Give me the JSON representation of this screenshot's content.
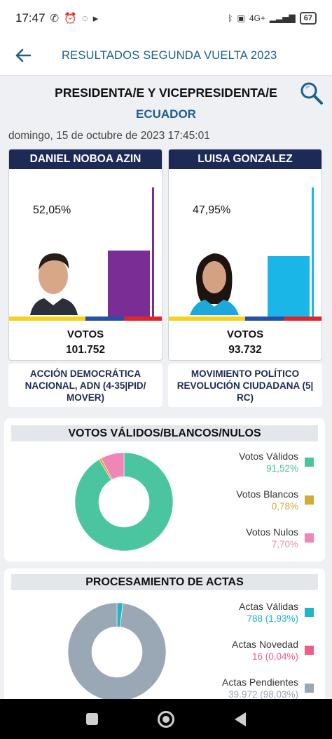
{
  "status_bar": {
    "time": "17:47",
    "network": "4G+",
    "battery": "67"
  },
  "app_bar": {
    "title": "RESULTADOS SEGUNDA VUELTA 2023"
  },
  "header": {
    "title": "PRESIDENTA/E Y VICEPRESIDENTA/E",
    "region": "ECUADOR",
    "datetime": "domingo, 15 de octubre de 2023 17:45:01"
  },
  "candidates": [
    {
      "name": "DANIEL NOBOA AZIN",
      "percent": "52,05%",
      "percent_value": 52.05,
      "votes_label": "VOTOS",
      "votes": "101.752",
      "party": "ACCIÓN DEMOCRÁTICA NACIONAL, ADN (4-35|PID/ MOVER)",
      "color": "#7b2d96"
    },
    {
      "name": "LUISA GONZALEZ",
      "percent": "47,95%",
      "percent_value": 47.95,
      "votes_label": "VOTOS",
      "votes": "93.732",
      "party": "MOVIMIENTO POLÍTICO REVOLUCIÓN CIUDADANA (5| RC)",
      "color": "#1ab6e8"
    }
  ],
  "votes_panel": {
    "title": "VOTOS VÁLIDOS/BLANCOS/NULOS",
    "items": [
      {
        "label": "Votos Válidos",
        "value": "91,52%",
        "share": 91.52,
        "color": "#4ac5a0"
      },
      {
        "label": "Votos Blancos",
        "value": "0,78%",
        "share": 0.78,
        "color": "#d2ac3a"
      },
      {
        "label": "Votos Nulos",
        "value": "7,70%",
        "share": 7.7,
        "color": "#ef86b5"
      }
    ]
  },
  "actas_panel": {
    "title": "PROCESAMIENTO DE ACTAS",
    "items": [
      {
        "label": "Actas Válidas",
        "value": "788 (1,93%)",
        "share": 1.93,
        "color": "#22b5c8"
      },
      {
        "label": "Actas Novedad",
        "value": "16 (0,04%)",
        "share": 0.04,
        "color": "#ec5d88"
      },
      {
        "label": "Actas Pendientes",
        "value": "39.972 (98,03%)",
        "share": 98.03,
        "color": "#9aa7b5"
      }
    ]
  },
  "flag_colors": [
    "#f6d11e",
    "#f6d11e",
    "#2550a8",
    "#e0242c"
  ]
}
